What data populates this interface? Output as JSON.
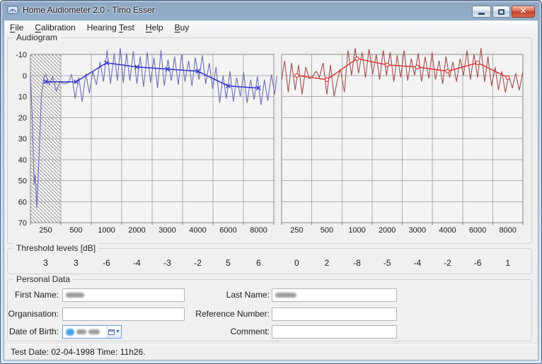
{
  "window": {
    "title": "Home Audiometer 2.0 - Timo Esser",
    "controls": [
      "minimize",
      "maximize",
      "close"
    ]
  },
  "icons": {
    "app": "app-icon",
    "minimize": "minimize-icon",
    "maximize": "maximize-icon",
    "close": "close-icon",
    "calendar": "calendar-icon",
    "dropdown": "chevron-down-icon"
  },
  "menu": {
    "items": [
      {
        "label": "File",
        "underline": 0
      },
      {
        "label": "Calibration",
        "underline": 0
      },
      {
        "label": "Hearing Test",
        "underline": 8
      },
      {
        "label": "Help",
        "underline": 0
      },
      {
        "label": "Buy",
        "underline": 0
      }
    ]
  },
  "audiogram": {
    "group_label": "Audiogram"
  },
  "chart_data": [
    {
      "type": "line",
      "panel": "left",
      "categories": [
        "250",
        "500",
        "1000",
        "2000",
        "3000",
        "4000",
        "6000",
        "8000"
      ],
      "y_ticks": [
        -10,
        0,
        10,
        20,
        30,
        40,
        50,
        60,
        70
      ],
      "ylim": [
        -10,
        70
      ],
      "grid": true,
      "show_y_labels": true,
      "hatched_band_columns": [
        0,
        1
      ],
      "plot_bg": "#f4f4f4",
      "series": [
        {
          "name": "raw-response",
          "color": "#6e6eb6",
          "marker": "none",
          "points_col_db": [
            [
              0,
              0
            ],
            [
              0.06,
              20
            ],
            [
              0.12,
              52
            ],
            [
              0.16,
              47
            ],
            [
              0.21,
              63
            ],
            [
              0.28,
              40
            ],
            [
              0.36,
              10
            ],
            [
              0.44,
              1
            ],
            [
              0.5,
              -0.5
            ],
            [
              0.62,
              4.5
            ],
            [
              0.73,
              0.5
            ],
            [
              0.85,
              7.5
            ],
            [
              0.97,
              3
            ],
            [
              1.1,
              4
            ],
            [
              1.24,
              3.5
            ],
            [
              1.35,
              -0.5
            ],
            [
              1.47,
              11
            ],
            [
              1.59,
              1
            ],
            [
              1.7,
              12.5
            ],
            [
              1.82,
              -1
            ],
            [
              1.94,
              8.5
            ],
            [
              2.05,
              -2
            ],
            [
              2.17,
              4.5
            ],
            [
              2.29,
              -6.5
            ],
            [
              2.4,
              3
            ],
            [
              2.52,
              -12
            ],
            [
              2.63,
              4
            ],
            [
              2.75,
              -10.5
            ],
            [
              2.86,
              2.5
            ],
            [
              2.95,
              -13
            ],
            [
              3.05,
              3.5
            ],
            [
              3.16,
              -10.5
            ],
            [
              3.27,
              2.5
            ],
            [
              3.38,
              -11.5
            ],
            [
              3.5,
              4
            ],
            [
              3.61,
              -9
            ],
            [
              3.72,
              5.5
            ],
            [
              3.84,
              -11
            ],
            [
              3.95,
              3.5
            ],
            [
              4.06,
              -8.5
            ],
            [
              4.18,
              6
            ],
            [
              4.29,
              -12
            ],
            [
              4.4,
              5
            ],
            [
              4.52,
              -7.5
            ],
            [
              4.63,
              2.5
            ],
            [
              4.74,
              -9
            ],
            [
              4.86,
              4.5
            ],
            [
              4.97,
              -10
            ],
            [
              5.08,
              3
            ],
            [
              5.2,
              -7
            ],
            [
              5.31,
              5
            ],
            [
              5.42,
              -8.5
            ],
            [
              5.54,
              2
            ],
            [
              5.65,
              -9.5
            ],
            [
              5.76,
              4
            ],
            [
              5.88,
              -6
            ],
            [
              5.99,
              6.5
            ],
            [
              6.1,
              -4
            ],
            [
              6.22,
              13
            ],
            [
              6.33,
              0
            ],
            [
              6.44,
              11
            ],
            [
              6.56,
              -2
            ],
            [
              6.67,
              12.5
            ],
            [
              6.78,
              1
            ],
            [
              6.9,
              10
            ],
            [
              7.01,
              -1.5
            ],
            [
              7.12,
              13
            ],
            [
              7.24,
              2
            ],
            [
              7.35,
              11.5
            ],
            [
              7.46,
              0.5
            ],
            [
              7.58,
              14
            ],
            [
              7.69,
              2
            ],
            [
              7.8,
              12
            ],
            [
              7.92,
              -0.5
            ],
            [
              8.03,
              9
            ],
            [
              8.1,
              0
            ]
          ]
        },
        {
          "name": "threshold",
          "color": "#3232cd",
          "marker": "x",
          "values_db": [
            3,
            3,
            -6,
            -4,
            -3,
            -2,
            5,
            6
          ]
        }
      ]
    },
    {
      "type": "line",
      "panel": "right",
      "categories": [
        "250",
        "500",
        "1000",
        "2000",
        "3000",
        "4000",
        "6000",
        "8000"
      ],
      "y_ticks": [
        -10,
        0,
        10,
        20,
        30,
        40,
        50,
        60,
        70
      ],
      "ylim": [
        -10,
        70
      ],
      "grid": true,
      "show_y_labels": false,
      "hatched_band_columns": null,
      "plot_bg": "#f4f4f4",
      "series": [
        {
          "name": "raw-response",
          "color": "#a14f4f",
          "marker": "none",
          "points_col_db": [
            [
              0,
              2
            ],
            [
              0.1,
              -7
            ],
            [
              0.22,
              8
            ],
            [
              0.33,
              -6
            ],
            [
              0.45,
              7
            ],
            [
              0.56,
              -5
            ],
            [
              0.68,
              9
            ],
            [
              0.8,
              -4
            ],
            [
              0.92,
              1.5
            ],
            [
              1.02,
              0.5
            ],
            [
              1.15,
              -2
            ],
            [
              1.25,
              1
            ],
            [
              1.38,
              -6
            ],
            [
              1.5,
              9
            ],
            [
              1.62,
              -5
            ],
            [
              1.74,
              10
            ],
            [
              1.85,
              2
            ],
            [
              1.95,
              -3
            ],
            [
              2.08,
              8
            ],
            [
              2.2,
              -12
            ],
            [
              2.32,
              0
            ],
            [
              2.44,
              -13
            ],
            [
              2.55,
              -1
            ],
            [
              2.67,
              -11
            ],
            [
              2.78,
              1
            ],
            [
              2.9,
              -12.5
            ],
            [
              3.02,
              -0.5
            ],
            [
              3.14,
              -10
            ],
            [
              3.25,
              2
            ],
            [
              3.37,
              -12
            ],
            [
              3.48,
              0
            ],
            [
              3.6,
              -11
            ],
            [
              3.72,
              3
            ],
            [
              3.83,
              -9.5
            ],
            [
              3.95,
              1
            ],
            [
              4.06,
              -12
            ],
            [
              4.18,
              2.5
            ],
            [
              4.3,
              -8
            ],
            [
              4.41,
              0
            ],
            [
              4.53,
              -10.5
            ],
            [
              4.64,
              3
            ],
            [
              4.76,
              -9
            ],
            [
              4.88,
              1.5
            ],
            [
              4.99,
              -11
            ],
            [
              5.1,
              2
            ],
            [
              5.22,
              -7
            ],
            [
              5.34,
              4
            ],
            [
              5.45,
              -9
            ],
            [
              5.57,
              1
            ],
            [
              5.68,
              -6.5
            ],
            [
              5.8,
              3
            ],
            [
              5.92,
              -8
            ],
            [
              6.03,
              0
            ],
            [
              6.15,
              -12
            ],
            [
              6.26,
              2
            ],
            [
              6.38,
              -10
            ],
            [
              6.5,
              1
            ],
            [
              6.61,
              -13
            ],
            [
              6.73,
              3
            ],
            [
              6.84,
              -9
            ],
            [
              6.96,
              5
            ],
            [
              7.08,
              -4
            ],
            [
              7.19,
              7
            ],
            [
              7.3,
              -2
            ],
            [
              7.42,
              8
            ],
            [
              7.53,
              0
            ],
            [
              7.65,
              6
            ],
            [
              7.76,
              -1
            ],
            [
              7.88,
              7
            ],
            [
              8,
              -2
            ]
          ]
        },
        {
          "name": "threshold",
          "color": "#e03838",
          "marker": "o",
          "values_db": [
            0,
            2,
            -8,
            -5,
            -4,
            -2,
            -6,
            1
          ]
        }
      ]
    }
  ],
  "threshold_panel": {
    "label": "Threshold levels [dB]",
    "left_values": [
      3,
      3,
      -6,
      -4,
      -3,
      -2,
      5,
      6
    ],
    "right_values": [
      0,
      2,
      -8,
      -5,
      -4,
      -2,
      -6,
      1
    ]
  },
  "personal_data": {
    "group_label": "Personal Data",
    "fields": {
      "first_name": {
        "label": "First Name:",
        "value": "",
        "redacted": true
      },
      "organisation": {
        "label": "Organisation:",
        "value": "",
        "redacted": false
      },
      "date_of_birth": {
        "label": "Date of Birth:",
        "value": "",
        "redacted": true
      },
      "last_name": {
        "label": "Last Name:",
        "value": "",
        "redacted": true
      },
      "reference_number": {
        "label": "Reference Number:",
        "value": "",
        "redacted": false
      },
      "comment": {
        "label": "Comment:",
        "value": "",
        "redacted": false
      }
    }
  },
  "status_bar": {
    "text": "Test Date: 02-04-1998 Time: 11h26."
  },
  "colors": {
    "titlebar": "#a9c2de",
    "client_bg": "#f0f0f0",
    "plot_bg": "#f4f4f4",
    "gridline": "#adadad",
    "raw_left": "#6e6eb6",
    "threshold_left": "#3232cd",
    "raw_right": "#a14f4f",
    "threshold_right": "#e03838",
    "close_button": "#c8402c"
  }
}
